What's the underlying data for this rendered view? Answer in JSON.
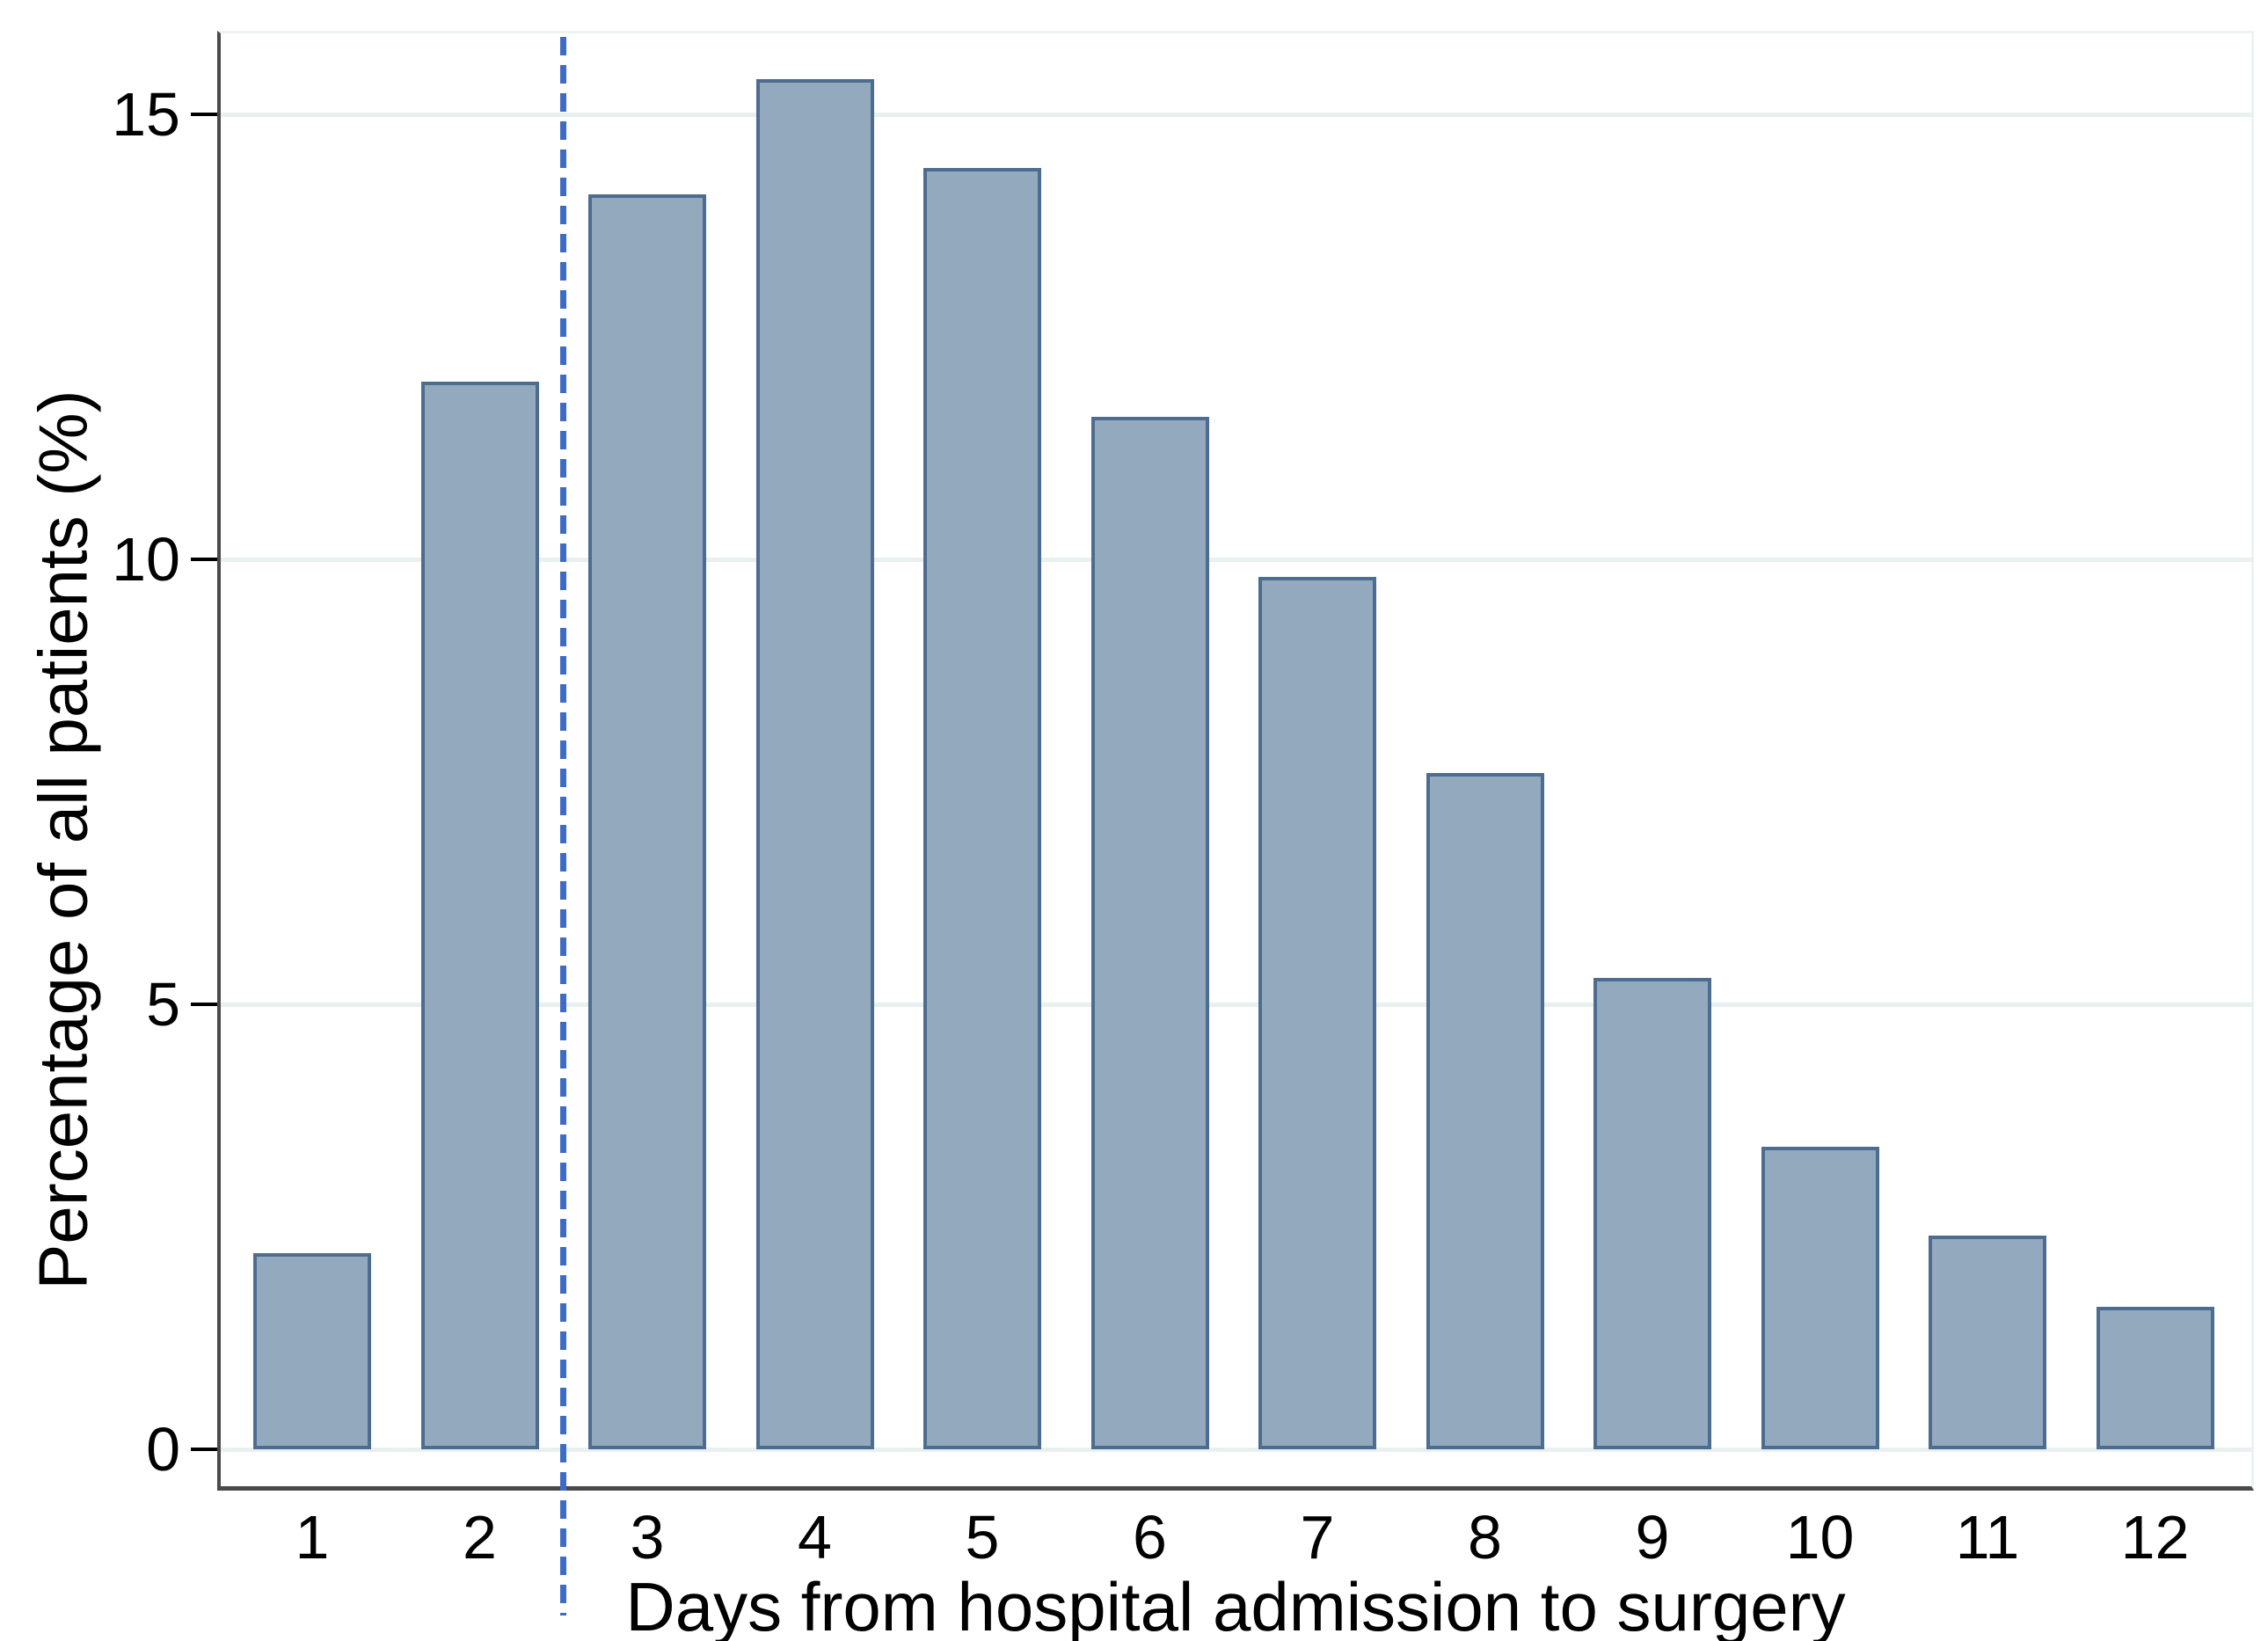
{
  "chart_data": {
    "type": "bar",
    "title": "",
    "xlabel": "Days from hospital admission to surgery",
    "ylabel": "Percentage of all patients (%)",
    "categories": [
      "1",
      "2",
      "3",
      "4",
      "5",
      "6",
      "7",
      "8",
      "9",
      "10",
      "11",
      "12"
    ],
    "values": [
      2.2,
      12.0,
      14.1,
      15.4,
      14.4,
      11.6,
      9.8,
      7.6,
      5.3,
      3.4,
      2.4,
      1.6
    ],
    "ylim": [
      0,
      15.9
    ],
    "yticks": [
      0,
      5,
      10,
      15
    ],
    "grid": "horizontal",
    "legend": "none",
    "reference_line": {
      "x": 2.5,
      "style": "dashed",
      "orientation": "vertical"
    },
    "colors": {
      "bar_fill": "#93a9be",
      "bar_border": "#4d6d90",
      "gridline": "#e8f1f0",
      "axis_line": "#4a4a4a",
      "reference_line": "#3e6bc5",
      "text": "#000000",
      "background": "#ffffff"
    }
  }
}
